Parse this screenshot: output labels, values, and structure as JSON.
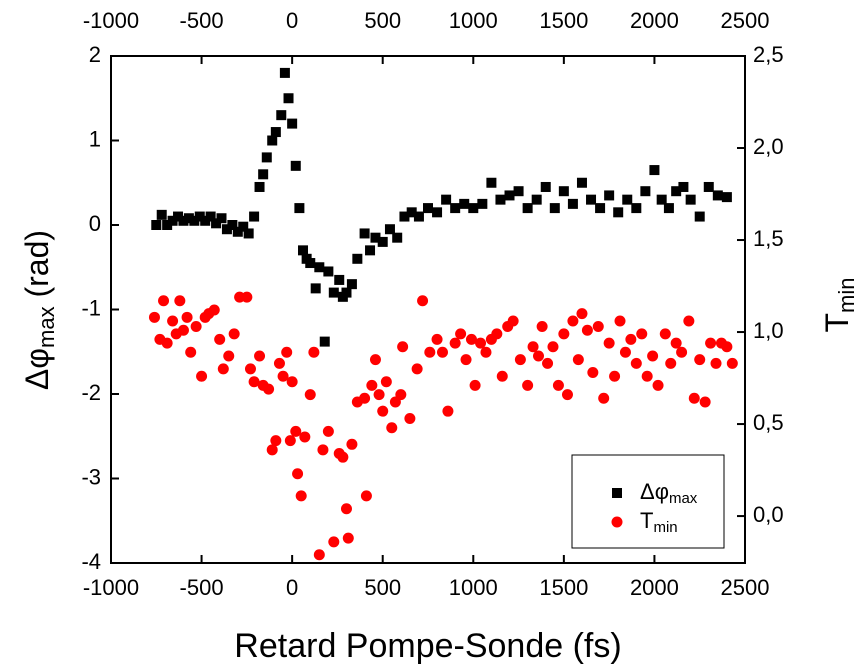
{
  "chart_data": {
    "type": "scatter",
    "x_label": "Retard Pompe-Sonde (fs)",
    "y_label": {
      "main": "Δφ",
      "sub": "max",
      "rest": " (rad)"
    },
    "y2_label": {
      "main": "T",
      "sub": "min"
    },
    "xlim": [
      -1000,
      2500
    ],
    "xticks": [
      -1000,
      -500,
      0,
      500,
      1000,
      1500,
      2000,
      2500
    ],
    "ylim": [
      -4,
      2
    ],
    "yticks": [
      -4,
      -3,
      -2,
      -1,
      0,
      1,
      2
    ],
    "y2lim": [
      -0.255,
      2.5
    ],
    "y2ticks": [
      {
        "value": 0,
        "label": "0,0"
      },
      {
        "value": 0.5,
        "label": "0,5"
      },
      {
        "value": 1,
        "label": "1,0"
      },
      {
        "value": 1.5,
        "label": "1,5"
      },
      {
        "value": 2,
        "label": "2,0"
      },
      {
        "value": 2.5,
        "label": "2,5"
      }
    ],
    "legend": "bottom-right",
    "series": [
      {
        "name": "Δφ",
        "name_sub": "max",
        "color": "#000000",
        "marker": "square",
        "x": [
          -750,
          -720,
          -690,
          -660,
          -630,
          -600,
          -570,
          -540,
          -510,
          -480,
          -450,
          -420,
          -390,
          -360,
          -330,
          -300,
          -270,
          -240,
          -210,
          -180,
          -160,
          -140,
          -110,
          -90,
          -60,
          -40,
          -20,
          0,
          20,
          40,
          60,
          80,
          100,
          130,
          150,
          180,
          200,
          230,
          260,
          280,
          300,
          330,
          360,
          400,
          430,
          460,
          500,
          540,
          580,
          620,
          660,
          700,
          750,
          800,
          850,
          900,
          950,
          1000,
          1050,
          1100,
          1150,
          1200,
          1250,
          1300,
          1350,
          1400,
          1450,
          1500,
          1550,
          1600,
          1650,
          1700,
          1750,
          1800,
          1850,
          1900,
          1950,
          2000,
          2040,
          2080,
          2120,
          2160,
          2200,
          2250,
          2300,
          2350,
          2400
        ],
        "values": [
          0,
          0.12,
          0,
          0.05,
          0.1,
          0.05,
          0.08,
          0.05,
          0.1,
          0.05,
          0.1,
          0.02,
          0.08,
          -0.05,
          0,
          -0.08,
          -0.02,
          -0.1,
          0.1,
          0.45,
          0.6,
          0.8,
          1.0,
          1.1,
          1.3,
          1.8,
          1.5,
          1.2,
          0.7,
          0.2,
          -0.3,
          -0.4,
          -0.45,
          -0.75,
          -0.5,
          -1.38,
          -0.55,
          -0.8,
          -0.65,
          -0.85,
          -0.8,
          -0.7,
          -0.4,
          -0.1,
          -0.3,
          -0.15,
          -0.2,
          -0.05,
          -0.15,
          0.1,
          0.15,
          0.1,
          0.2,
          0.15,
          0.3,
          0.2,
          0.25,
          0.2,
          0.25,
          0.5,
          0.3,
          0.35,
          0.4,
          0.2,
          0.3,
          0.45,
          0.2,
          0.4,
          0.25,
          0.5,
          0.3,
          0.2,
          0.35,
          0.15,
          0.3,
          0.2,
          0.4,
          0.65,
          0.3,
          0.2,
          0.4,
          0.45,
          0.3,
          0.1,
          0.45,
          0.35,
          0.33
        ]
      },
      {
        "name": "T",
        "name_sub": "min",
        "color": "#ff0000",
        "marker": "circle",
        "axis": "y2",
        "x": [
          -760,
          -730,
          -710,
          -690,
          -660,
          -640,
          -620,
          -600,
          -580,
          -560,
          -530,
          -500,
          -480,
          -460,
          -430,
          -400,
          -380,
          -350,
          -320,
          -290,
          -250,
          -230,
          -210,
          -180,
          -160,
          -130,
          -110,
          -90,
          -70,
          -50,
          -30,
          -10,
          0,
          20,
          30,
          50,
          70,
          100,
          120,
          150,
          170,
          200,
          230,
          260,
          280,
          300,
          310,
          330,
          360,
          400,
          410,
          440,
          460,
          480,
          500,
          520,
          550,
          570,
          600,
          610,
          650,
          690,
          720,
          760,
          800,
          830,
          860,
          900,
          930,
          960,
          990,
          1010,
          1040,
          1070,
          1100,
          1130,
          1160,
          1190,
          1220,
          1260,
          1300,
          1330,
          1360,
          1380,
          1410,
          1440,
          1470,
          1500,
          1520,
          1550,
          1580,
          1600,
          1630,
          1660,
          1690,
          1720,
          1750,
          1780,
          1810,
          1840,
          1870,
          1900,
          1930,
          1960,
          1990,
          2020,
          2060,
          2090,
          2120,
          2150,
          2190,
          2220,
          2250,
          2280,
          2310,
          2340,
          2370,
          2400,
          2430
        ],
        "values": [
          1.08,
          0.96,
          1.17,
          0.94,
          1.06,
          0.99,
          1.17,
          1.01,
          1.08,
          0.89,
          1.03,
          0.76,
          1.08,
          1.1,
          1.12,
          0.96,
          0.8,
          0.87,
          0.99,
          1.19,
          1.19,
          0.8,
          0.73,
          0.87,
          0.71,
          0.69,
          0.36,
          0.41,
          0.83,
          0.76,
          0.89,
          0.41,
          0.73,
          0.46,
          0.23,
          0.11,
          0.43,
          0.66,
          0.89,
          -0.21,
          0.36,
          0.46,
          -0.14,
          0.34,
          0.32,
          0.04,
          -0.12,
          0.39,
          0.62,
          0.64,
          0.11,
          0.71,
          0.85,
          0.66,
          0.57,
          0.73,
          0.48,
          0.62,
          0.66,
          0.92,
          0.53,
          0.8,
          1.17,
          0.89,
          0.96,
          0.89,
          0.57,
          0.94,
          0.99,
          0.85,
          0.96,
          0.71,
          0.94,
          0.89,
          0.96,
          0.99,
          0.76,
          1.03,
          1.06,
          0.85,
          0.71,
          0.92,
          0.87,
          1.03,
          0.83,
          0.92,
          0.71,
          0.99,
          0.66,
          1.06,
          0.85,
          1.1,
          1.01,
          0.78,
          1.03,
          0.64,
          0.94,
          0.76,
          1.06,
          0.89,
          0.96,
          0.83,
          0.99,
          0.76,
          0.87,
          0.71,
          0.99,
          0.83,
          0.94,
          0.89,
          1.06,
          0.64,
          0.85,
          0.62,
          0.94,
          0.83,
          0.94,
          0.92,
          0.83
        ]
      }
    ]
  }
}
